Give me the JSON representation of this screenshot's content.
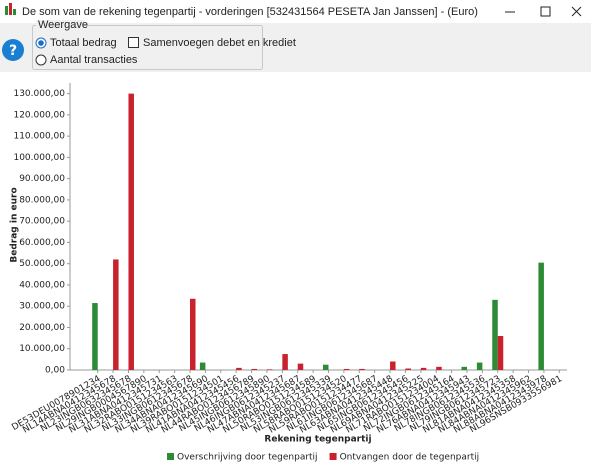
{
  "window": {
    "title": "De som van de rekening tegenpartij - vorderingen [532431564 PESETA Jan Janssen] - (Euro)",
    "help_button": "?"
  },
  "controls": {
    "group_title": "Weergave",
    "radio_options": [
      "Totaal bedrag",
      "Aantal transacties"
    ],
    "selected_radio": 0,
    "checkbox": "Samenvoegen debet en krediet",
    "checkbox_checked": false
  },
  "chart_data": {
    "type": "bar",
    "y_label": "Bedrag in euro",
    "x_label": "Rekening tegenpartij",
    "categories": [
      "DE53DEU0078901234",
      "NL14ABNA0412345678",
      "NL23INGB0632345678",
      "NL29INGB0004567890",
      "NL31ABNA0412345731",
      "NL32RABO0151234563",
      "NL33INGB0612345678",
      "NL34ABNA0412345690",
      "NL39RABO0151234501",
      "NL41ABNA0412345456",
      "NL44RABO0123456789",
      "NL45INGB0612345890",
      "NL46INGB0612345237",
      "NL47ABNA0412345687",
      "NL50RABO0151234589",
      "NL53INGB0612345339",
      "NL58RABO0151234520",
      "NL59RABO0151234477",
      "NL61INGB0612345687",
      "NL63ABNA0412345448",
      "NL65INGB0612345456",
      "NL69ABNA0412345225",
      "NL71RABO0151234004",
      "NL72INGB0612345164",
      "NL76ABNA0412345943",
      "NL78INGB0612345536",
      "NL79INGB0612345723",
      "NL81ABNA0412345358",
      "NL84ABNA0412345962",
      "NL88ABNA0412343978",
      "NL96SNSB0933556981"
    ],
    "series": [
      {
        "name": "Overschrijving door tegenpartij",
        "color": "#2e8b35",
        "values": [
          31500,
          0,
          0,
          0,
          0,
          0,
          0,
          3500,
          0,
          0,
          0,
          0,
          0,
          0,
          0,
          2500,
          0,
          0,
          0,
          0,
          0,
          0,
          0,
          0,
          1500,
          3500,
          33000,
          0,
          0,
          50500,
          0
        ]
      },
      {
        "name": "Ontvangen door de tegenpartij",
        "color": "#c8232c",
        "values": [
          0,
          52000,
          130000,
          0,
          0,
          0,
          33500,
          0,
          0,
          1000,
          500,
          300,
          7500,
          3000,
          0,
          0,
          500,
          500,
          0,
          4000,
          700,
          1000,
          1500,
          0,
          0,
          0,
          16000,
          0,
          0,
          0,
          0
        ]
      }
    ],
    "ylim": [
      0,
      135000
    ],
    "yticks": [
      {
        "value": 0,
        "label": "0,00"
      },
      {
        "value": 10000,
        "label": "10.000,00"
      },
      {
        "value": 20000,
        "label": "20.000,00"
      },
      {
        "value": 30000,
        "label": "30.000,00"
      },
      {
        "value": 40000,
        "label": "40.000,00"
      },
      {
        "value": 50000,
        "label": "50.000,00"
      },
      {
        "value": 60000,
        "label": "60.000,00"
      },
      {
        "value": 70000,
        "label": "70.000,00"
      },
      {
        "value": 80000,
        "label": "80.000,00"
      },
      {
        "value": 90000,
        "label": "90.000,00"
      },
      {
        "value": 100000,
        "label": "100.000,00"
      },
      {
        "value": 110000,
        "label": "110.000,00"
      },
      {
        "value": 120000,
        "label": "120.000,00"
      },
      {
        "value": 130000,
        "label": "130.000,00"
      }
    ],
    "grid": false,
    "legend": "bottom"
  }
}
